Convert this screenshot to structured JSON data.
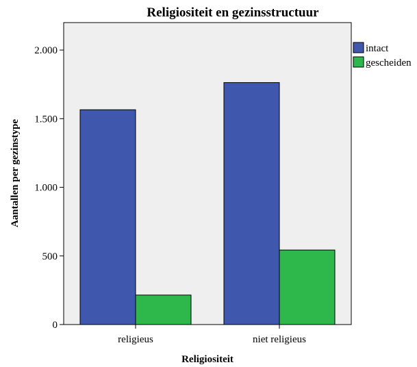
{
  "chart_data": {
    "type": "bar",
    "title": "Religiositeit en gezinsstructuur",
    "xlabel": "Religiositeit",
    "ylabel": "Aantallen per gezinstype",
    "categories": [
      "religieus",
      "niet religieus"
    ],
    "series": [
      {
        "name": "intact",
        "values": [
          1565,
          1763
        ],
        "color": "#3f58ae"
      },
      {
        "name": "gescheiden",
        "values": [
          215,
          543
        ],
        "color": "#2eb84b"
      }
    ],
    "ylim": [
      0,
      2200
    ],
    "yticks": [
      0,
      500,
      1000,
      1500,
      2000
    ],
    "ytick_labels": [
      "0",
      "500",
      "1.000",
      "1.500",
      "2.000"
    ],
    "legend_position": "right",
    "plot_background": "#efefef",
    "grid": false
  }
}
